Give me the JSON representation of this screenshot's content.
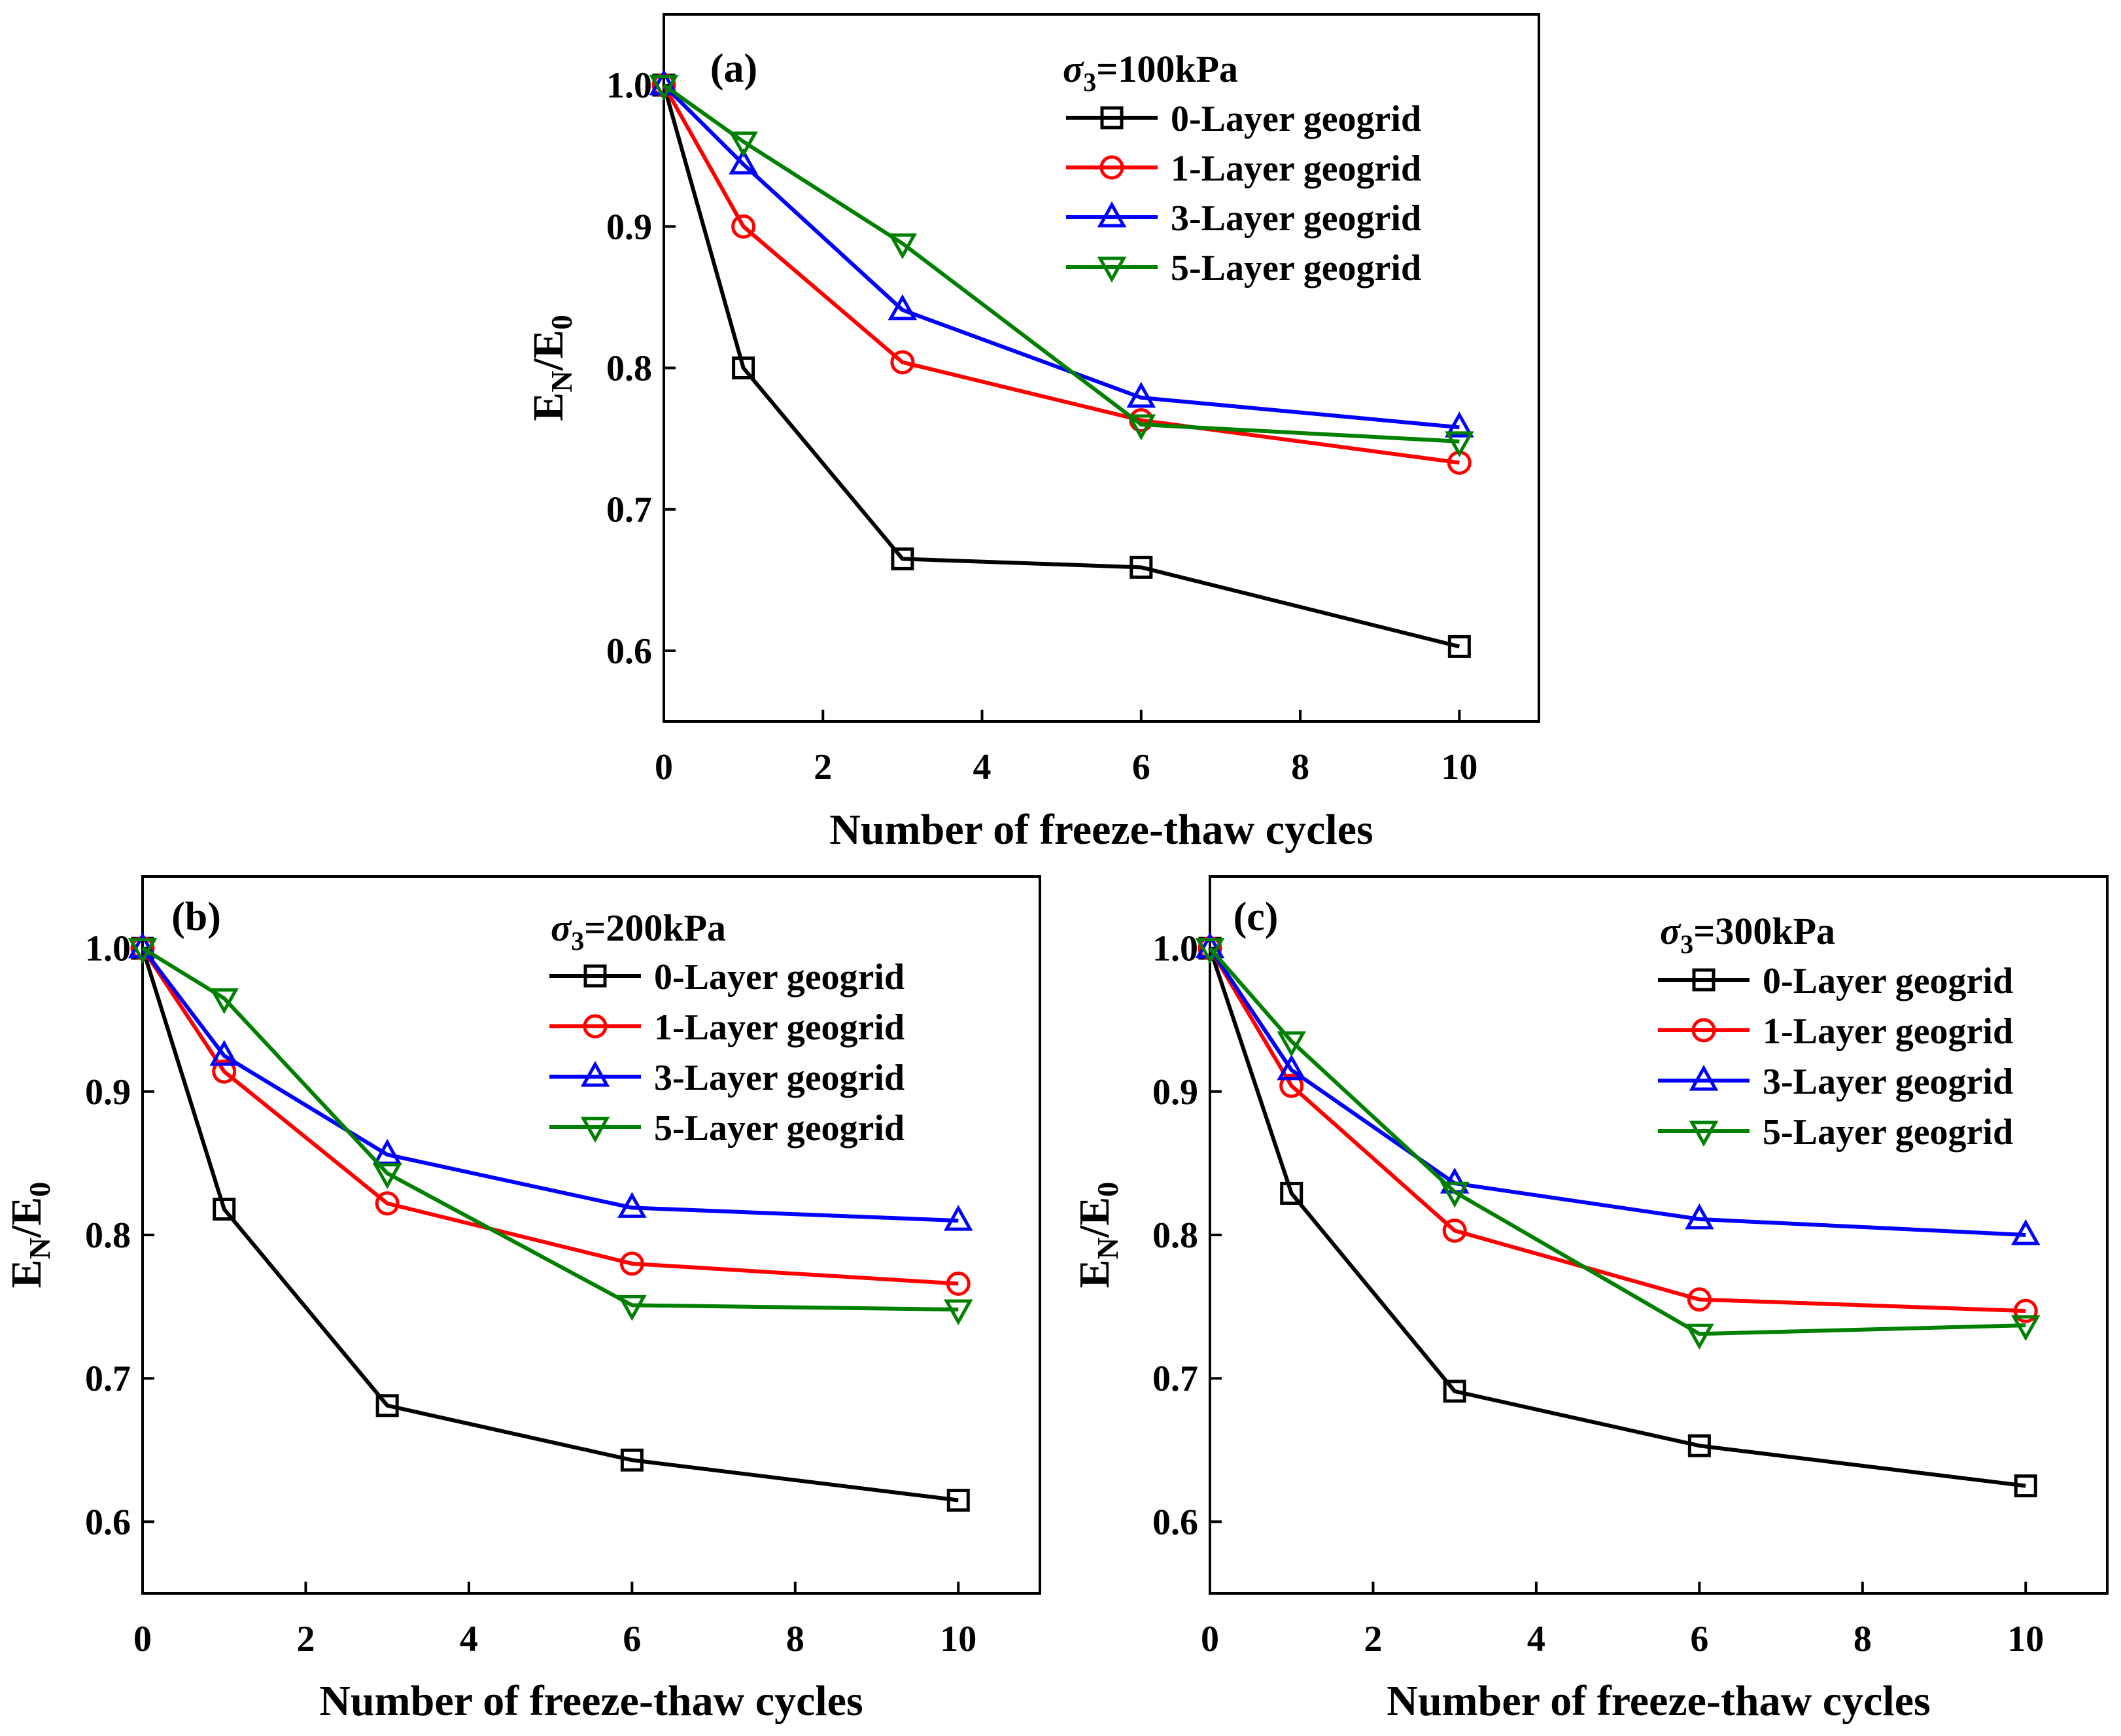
{
  "chart_data": [
    {
      "type": "line",
      "panel_label": "(a)",
      "condition": {
        "symbol": "σ",
        "subscript": "3",
        "value": "=100kPa"
      },
      "xlabel": "Number of freeze-thaw cycles",
      "ylabel": {
        "base": "E",
        "sub1": "N",
        "mid": "/E",
        "sub2": "0"
      },
      "xlim": [
        0,
        11
      ],
      "ylim": [
        0.55,
        1.05
      ],
      "xticks": [
        0,
        2,
        4,
        6,
        8,
        10
      ],
      "xtick_labels": [
        "0",
        "2",
        "4",
        "6",
        "8",
        "10"
      ],
      "yticks": [
        0.6,
        0.7,
        0.8,
        0.9,
        1.0
      ],
      "ytick_labels": [
        "0.6",
        "0.7",
        "0.8",
        "0.9",
        "1.0"
      ],
      "x": [
        0,
        1,
        3,
        6,
        10
      ],
      "series": [
        {
          "name": "0-Layer geogrid",
          "color": "#000000",
          "marker": "square",
          "values": [
            1.0,
            0.8,
            0.665,
            0.659,
            0.603
          ]
        },
        {
          "name": "1-Layer geogrid",
          "color": "#ff0000",
          "marker": "circle",
          "values": [
            1.0,
            0.9,
            0.804,
            0.763,
            0.733
          ]
        },
        {
          "name": "3-Layer geogrid",
          "color": "#0000ff",
          "marker": "triangle-up",
          "values": [
            1.0,
            0.944,
            0.841,
            0.779,
            0.758
          ]
        },
        {
          "name": "5-Layer geogrid",
          "color": "#008000",
          "marker": "triangle-down",
          "values": [
            1.0,
            0.96,
            0.888,
            0.76,
            0.748
          ]
        }
      ],
      "legend_position": "top-right"
    },
    {
      "type": "line",
      "panel_label": "(b)",
      "condition": {
        "symbol": "σ",
        "subscript": "3",
        "value": "=200kPa"
      },
      "xlabel": "Number of freeze-thaw cycles",
      "ylabel": {
        "base": "E",
        "sub1": "N",
        "mid": "/E",
        "sub2": "0"
      },
      "xlim": [
        0,
        11
      ],
      "ylim": [
        0.55,
        1.05
      ],
      "xticks": [
        0,
        2,
        4,
        6,
        8,
        10
      ],
      "xtick_labels": [
        "0",
        "2",
        "4",
        "6",
        "8",
        "10"
      ],
      "yticks": [
        0.6,
        0.7,
        0.8,
        0.9,
        1.0
      ],
      "ytick_labels": [
        "0.6",
        "0.7",
        "0.8",
        "0.9",
        "1.0"
      ],
      "x": [
        0,
        1,
        3,
        6,
        10
      ],
      "series": [
        {
          "name": "0-Layer geogrid",
          "color": "#000000",
          "marker": "square",
          "values": [
            1.0,
            0.818,
            0.681,
            0.643,
            0.615
          ]
        },
        {
          "name": "1-Layer geogrid",
          "color": "#ff0000",
          "marker": "circle",
          "values": [
            1.0,
            0.914,
            0.822,
            0.78,
            0.766
          ]
        },
        {
          "name": "3-Layer geogrid",
          "color": "#0000ff",
          "marker": "triangle-up",
          "values": [
            1.0,
            0.925,
            0.856,
            0.819,
            0.81
          ]
        },
        {
          "name": "5-Layer geogrid",
          "color": "#008000",
          "marker": "triangle-down",
          "values": [
            1.0,
            0.965,
            0.843,
            0.751,
            0.748
          ]
        }
      ],
      "legend_position": "top-right"
    },
    {
      "type": "line",
      "panel_label": "(c)",
      "condition": {
        "symbol": "σ",
        "subscript": "3",
        "value": "=300kPa"
      },
      "xlabel": "Number of freeze-thaw cycles",
      "ylabel": {
        "base": "E",
        "sub1": "N",
        "mid": "/E",
        "sub2": "0"
      },
      "xlim": [
        0,
        11
      ],
      "ylim": [
        0.55,
        1.05
      ],
      "xticks": [
        0,
        2,
        4,
        6,
        8,
        10
      ],
      "xtick_labels": [
        "0",
        "2",
        "4",
        "6",
        "8",
        "10"
      ],
      "yticks": [
        0.6,
        0.7,
        0.8,
        0.9,
        1.0
      ],
      "ytick_labels": [
        "0.6",
        "0.7",
        "0.8",
        "0.9",
        "1.0"
      ],
      "x": [
        0,
        1,
        3,
        6,
        10
      ],
      "series": [
        {
          "name": "0-Layer geogrid",
          "color": "#000000",
          "marker": "square",
          "values": [
            1.0,
            0.829,
            0.691,
            0.653,
            0.625
          ]
        },
        {
          "name": "1-Layer geogrid",
          "color": "#ff0000",
          "marker": "circle",
          "values": [
            1.0,
            0.904,
            0.803,
            0.755,
            0.747
          ]
        },
        {
          "name": "3-Layer geogrid",
          "color": "#0000ff",
          "marker": "triangle-up",
          "values": [
            1.0,
            0.915,
            0.836,
            0.811,
            0.8
          ]
        },
        {
          "name": "5-Layer geogrid",
          "color": "#008000",
          "marker": "triangle-down",
          "values": [
            1.0,
            0.935,
            0.83,
            0.731,
            0.737
          ]
        }
      ],
      "legend_position": "top-right"
    }
  ]
}
